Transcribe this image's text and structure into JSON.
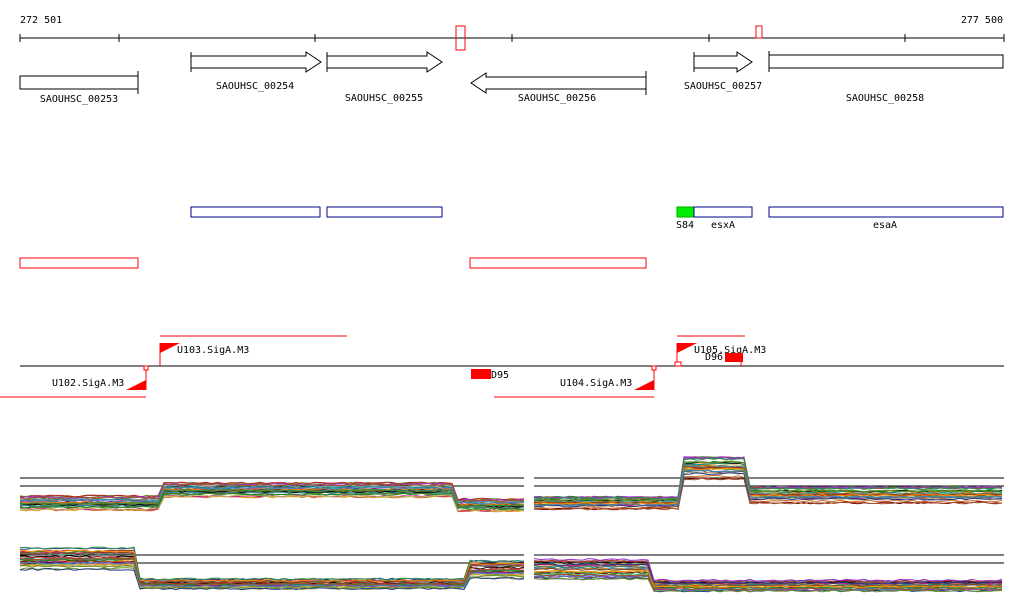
{
  "ruler": {
    "start_label": "272 501",
    "end_label": "277 500"
  },
  "genes": [
    {
      "id": "SAOUHSC_00253",
      "strand": "none",
      "label": "SAOUHSC_00253"
    },
    {
      "id": "SAOUHSC_00254",
      "strand": "+",
      "label": "SAOUHSC_00254"
    },
    {
      "id": "SAOUHSC_00255",
      "strand": "+",
      "label": "SAOUHSC_00255"
    },
    {
      "id": "SAOUHSC_00256",
      "strand": "-",
      "label": "SAOUHSC_00256"
    },
    {
      "id": "SAOUHSC_00257",
      "strand": "+",
      "label": "SAOUHSC_00257"
    },
    {
      "id": "SAOUHSC_00258",
      "strand": "none",
      "label": "SAOUHSC_00258"
    }
  ],
  "annotations": {
    "s84": "S84",
    "esxA": "esxA",
    "esaA": "esaA"
  },
  "features": {
    "u102": "U102.SigA.M3",
    "u103": "U103.SigA.M3",
    "u104": "U104.SigA.M3",
    "u105": "U105.SigA.M3",
    "d95": "D95",
    "d96": "D96"
  },
  "colors": {
    "blue_box": "#00008b",
    "red_box": "#ff0000",
    "green_box": "#00ee00",
    "black": "#000000"
  }
}
